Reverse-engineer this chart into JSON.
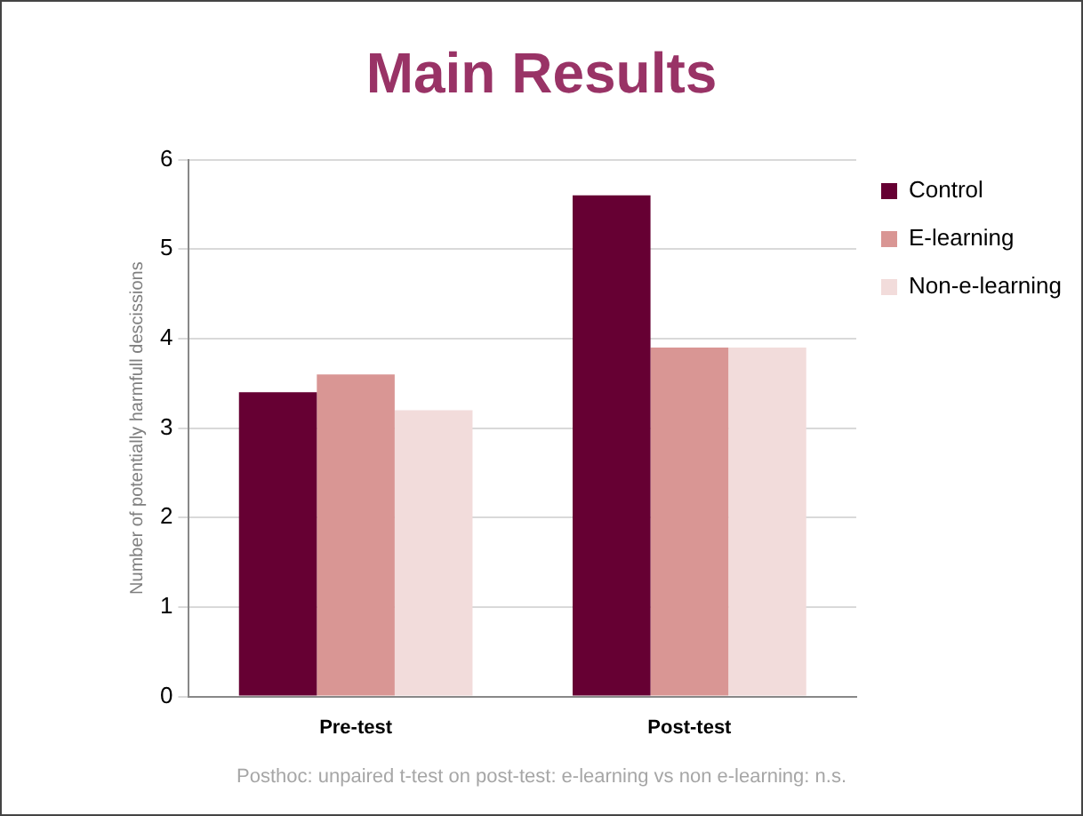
{
  "chart_data": {
    "type": "bar",
    "title": "Main Results",
    "ylabel": "Number of potentially harmfull descissions",
    "categories": [
      "Pre-test",
      "Post-test"
    ],
    "series": [
      {
        "name": "Control",
        "color": "#660033",
        "values": [
          3.4,
          5.6
        ]
      },
      {
        "name": "E-learning",
        "color": "#d99694",
        "values": [
          3.6,
          3.9
        ]
      },
      {
        "name": "Non-e-learning",
        "color": "#f2dcdb",
        "values": [
          3.2,
          3.9
        ]
      }
    ],
    "ylim": [
      0,
      6
    ],
    "yticks": [
      0,
      1,
      2,
      3,
      4,
      5,
      6
    ],
    "grid": "y",
    "legend": "top right",
    "annotations": [
      "Posthoc: unpaired t-test on post-test: e-learning vs non e-learning: n.s."
    ]
  }
}
